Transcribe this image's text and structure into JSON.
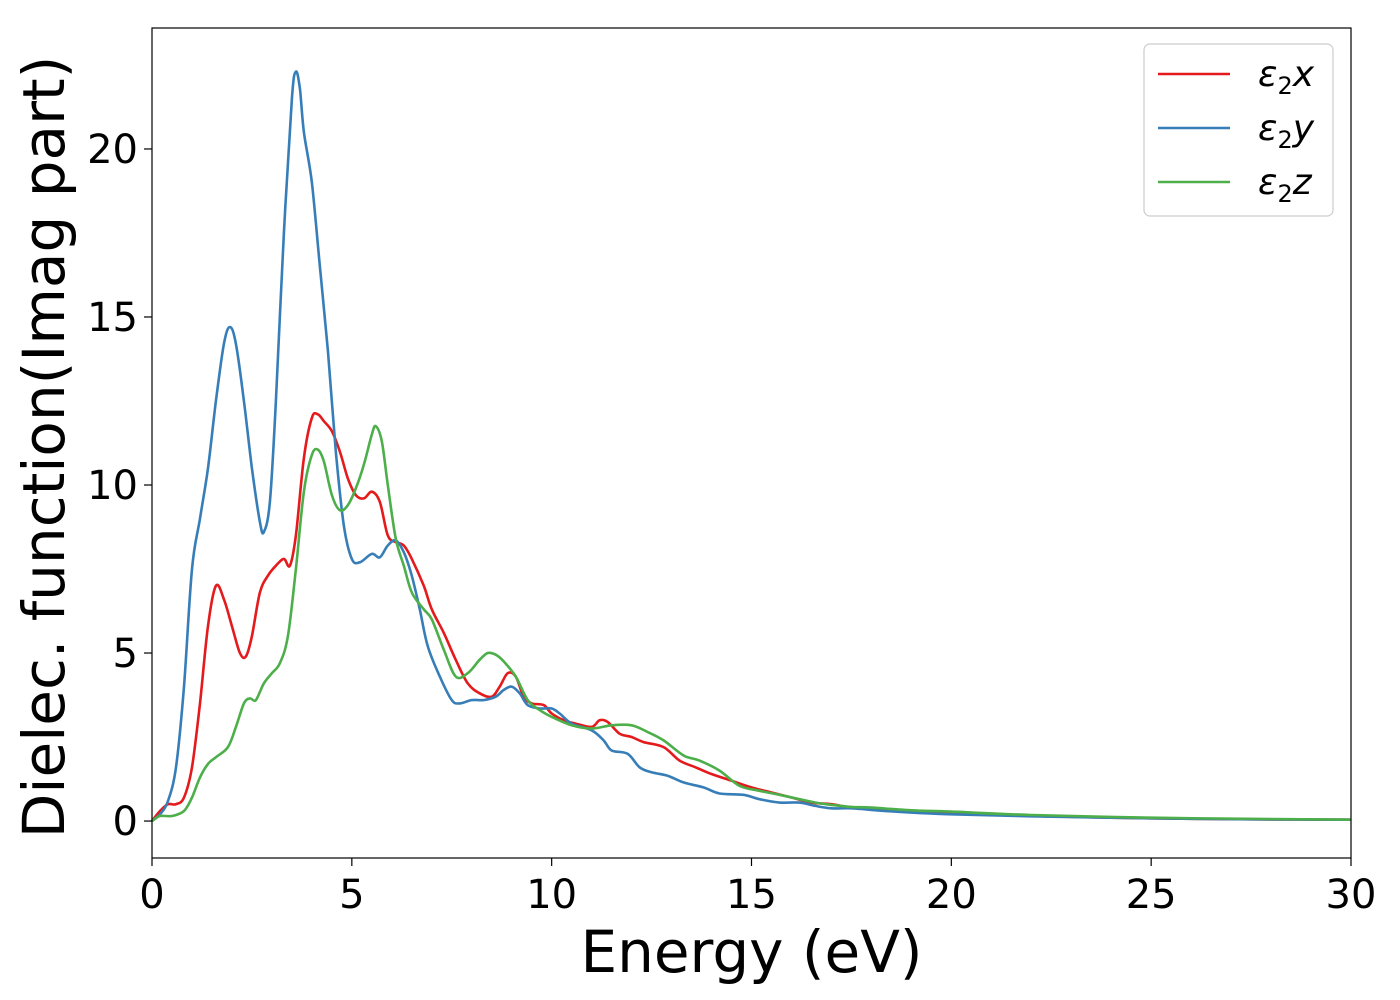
{
  "chart_data": {
    "type": "line",
    "title": "",
    "xlabel": "Energy (eV)",
    "ylabel": "Dielec. function(Imag part)",
    "xlim": [
      0,
      30
    ],
    "ylim": [
      -1.1,
      23.6
    ],
    "xticks": [
      "0",
      "5",
      "10",
      "15",
      "20",
      "25",
      "30"
    ],
    "yticks": [
      "0",
      "5",
      "10",
      "15",
      "20"
    ],
    "grid": false,
    "legend_position": "top-right",
    "series": [
      {
        "name": "ε₂x",
        "legend_base": "ε",
        "legend_sub": "2",
        "legend_suffix": "x",
        "color": "#e41a1c",
        "points": [
          [
            0,
            0
          ],
          [
            0.2,
            0.3
          ],
          [
            0.4,
            0.5
          ],
          [
            0.6,
            0.5
          ],
          [
            0.8,
            0.7
          ],
          [
            1.0,
            1.6
          ],
          [
            1.2,
            3.5
          ],
          [
            1.4,
            5.8
          ],
          [
            1.6,
            7.0
          ],
          [
            1.8,
            6.6
          ],
          [
            2.0,
            5.8
          ],
          [
            2.2,
            5.0
          ],
          [
            2.35,
            4.9
          ],
          [
            2.5,
            5.5
          ],
          [
            2.7,
            6.8
          ],
          [
            2.9,
            7.3
          ],
          [
            3.1,
            7.6
          ],
          [
            3.3,
            7.8
          ],
          [
            3.45,
            7.6
          ],
          [
            3.6,
            8.5
          ],
          [
            3.8,
            10.8
          ],
          [
            4.0,
            12.0
          ],
          [
            4.15,
            12.1
          ],
          [
            4.3,
            11.9
          ],
          [
            4.5,
            11.6
          ],
          [
            4.7,
            11.0
          ],
          [
            4.9,
            10.2
          ],
          [
            5.1,
            9.7
          ],
          [
            5.3,
            9.6
          ],
          [
            5.5,
            9.8
          ],
          [
            5.7,
            9.5
          ],
          [
            5.9,
            8.5
          ],
          [
            6.1,
            8.3
          ],
          [
            6.3,
            8.2
          ],
          [
            6.5,
            7.8
          ],
          [
            6.8,
            7.0
          ],
          [
            7.0,
            6.3
          ],
          [
            7.3,
            5.6
          ],
          [
            7.6,
            4.8
          ],
          [
            7.9,
            4.1
          ],
          [
            8.2,
            3.8
          ],
          [
            8.5,
            3.7
          ],
          [
            8.7,
            4.0
          ],
          [
            8.9,
            4.4
          ],
          [
            9.1,
            4.3
          ],
          [
            9.3,
            3.7
          ],
          [
            9.5,
            3.5
          ],
          [
            9.8,
            3.45
          ],
          [
            10.0,
            3.2
          ],
          [
            10.3,
            3.0
          ],
          [
            10.6,
            2.9
          ],
          [
            11.0,
            2.8
          ],
          [
            11.2,
            3.0
          ],
          [
            11.4,
            2.95
          ],
          [
            11.7,
            2.6
          ],
          [
            12.0,
            2.5
          ],
          [
            12.3,
            2.35
          ],
          [
            12.8,
            2.2
          ],
          [
            13.2,
            1.8
          ],
          [
            13.6,
            1.6
          ],
          [
            14.0,
            1.4
          ],
          [
            14.5,
            1.2
          ],
          [
            15.0,
            1.0
          ],
          [
            15.5,
            0.85
          ],
          [
            16.0,
            0.7
          ],
          [
            16.5,
            0.55
          ],
          [
            17.0,
            0.5
          ],
          [
            17.5,
            0.4
          ],
          [
            18.0,
            0.35
          ],
          [
            19.0,
            0.28
          ],
          [
            20.0,
            0.22
          ],
          [
            22.0,
            0.15
          ],
          [
            25.0,
            0.08
          ],
          [
            28.0,
            0.05
          ],
          [
            30.0,
            0.04
          ]
        ]
      },
      {
        "name": "ε₂y",
        "legend_base": "ε",
        "legend_sub": "2",
        "legend_suffix": "y",
        "color": "#377eb8",
        "points": [
          [
            0,
            0
          ],
          [
            0.2,
            0.2
          ],
          [
            0.4,
            0.6
          ],
          [
            0.6,
            1.6
          ],
          [
            0.8,
            4.0
          ],
          [
            1.0,
            7.5
          ],
          [
            1.2,
            9.0
          ],
          [
            1.4,
            10.5
          ],
          [
            1.6,
            12.5
          ],
          [
            1.8,
            14.2
          ],
          [
            1.95,
            14.7
          ],
          [
            2.1,
            14.2
          ],
          [
            2.3,
            12.5
          ],
          [
            2.5,
            10.5
          ],
          [
            2.7,
            8.9
          ],
          [
            2.8,
            8.6
          ],
          [
            2.95,
            9.5
          ],
          [
            3.1,
            12.5
          ],
          [
            3.3,
            17.5
          ],
          [
            3.5,
            21.5
          ],
          [
            3.6,
            22.3
          ],
          [
            3.7,
            21.8
          ],
          [
            3.8,
            20.5
          ],
          [
            4.0,
            19.0
          ],
          [
            4.2,
            16.5
          ],
          [
            4.4,
            14.0
          ],
          [
            4.6,
            11.0
          ],
          [
            4.8,
            8.8
          ],
          [
            5.0,
            7.8
          ],
          [
            5.2,
            7.7
          ],
          [
            5.5,
            7.95
          ],
          [
            5.7,
            7.85
          ],
          [
            5.9,
            8.2
          ],
          [
            6.1,
            8.35
          ],
          [
            6.3,
            8.0
          ],
          [
            6.5,
            7.3
          ],
          [
            6.7,
            6.3
          ],
          [
            6.9,
            5.2
          ],
          [
            7.2,
            4.3
          ],
          [
            7.5,
            3.6
          ],
          [
            7.7,
            3.5
          ],
          [
            8.0,
            3.6
          ],
          [
            8.3,
            3.6
          ],
          [
            8.6,
            3.7
          ],
          [
            8.8,
            3.9
          ],
          [
            9.0,
            4.0
          ],
          [
            9.2,
            3.8
          ],
          [
            9.4,
            3.45
          ],
          [
            9.7,
            3.35
          ],
          [
            10.0,
            3.35
          ],
          [
            10.2,
            3.2
          ],
          [
            10.5,
            2.9
          ],
          [
            11.0,
            2.7
          ],
          [
            11.3,
            2.4
          ],
          [
            11.5,
            2.1
          ],
          [
            11.9,
            2.0
          ],
          [
            12.2,
            1.6
          ],
          [
            12.5,
            1.45
          ],
          [
            12.9,
            1.35
          ],
          [
            13.3,
            1.15
          ],
          [
            13.8,
            1.0
          ],
          [
            14.2,
            0.82
          ],
          [
            14.8,
            0.78
          ],
          [
            15.2,
            0.65
          ],
          [
            15.7,
            0.55
          ],
          [
            16.2,
            0.55
          ],
          [
            16.6,
            0.45
          ],
          [
            17.0,
            0.38
          ],
          [
            17.5,
            0.38
          ],
          [
            18.0,
            0.33
          ],
          [
            19.0,
            0.25
          ],
          [
            20.0,
            0.2
          ],
          [
            22.0,
            0.14
          ],
          [
            25.0,
            0.08
          ],
          [
            28.0,
            0.05
          ],
          [
            30.0,
            0.04
          ]
        ]
      },
      {
        "name": "ε₂z",
        "legend_base": "ε",
        "legend_sub": "2",
        "legend_suffix": "z",
        "color": "#4daf4a",
        "points": [
          [
            0,
            0
          ],
          [
            0.2,
            0.15
          ],
          [
            0.5,
            0.15
          ],
          [
            0.8,
            0.3
          ],
          [
            1.0,
            0.7
          ],
          [
            1.2,
            1.3
          ],
          [
            1.4,
            1.7
          ],
          [
            1.6,
            1.9
          ],
          [
            1.9,
            2.2
          ],
          [
            2.1,
            2.8
          ],
          [
            2.3,
            3.5
          ],
          [
            2.45,
            3.65
          ],
          [
            2.6,
            3.6
          ],
          [
            2.8,
            4.1
          ],
          [
            3.0,
            4.4
          ],
          [
            3.2,
            4.7
          ],
          [
            3.4,
            5.5
          ],
          [
            3.6,
            7.5
          ],
          [
            3.8,
            9.8
          ],
          [
            4.0,
            10.9
          ],
          [
            4.15,
            11.05
          ],
          [
            4.3,
            10.7
          ],
          [
            4.5,
            9.7
          ],
          [
            4.7,
            9.25
          ],
          [
            4.9,
            9.4
          ],
          [
            5.1,
            9.9
          ],
          [
            5.3,
            10.6
          ],
          [
            5.5,
            11.5
          ],
          [
            5.6,
            11.75
          ],
          [
            5.75,
            11.3
          ],
          [
            5.9,
            10.0
          ],
          [
            6.1,
            8.4
          ],
          [
            6.3,
            7.6
          ],
          [
            6.5,
            6.8
          ],
          [
            6.8,
            6.3
          ],
          [
            7.0,
            6.0
          ],
          [
            7.3,
            5.1
          ],
          [
            7.6,
            4.3
          ],
          [
            7.9,
            4.4
          ],
          [
            8.2,
            4.8
          ],
          [
            8.4,
            5.0
          ],
          [
            8.6,
            4.95
          ],
          [
            8.8,
            4.75
          ],
          [
            9.1,
            4.3
          ],
          [
            9.4,
            3.6
          ],
          [
            9.7,
            3.3
          ],
          [
            10.0,
            3.1
          ],
          [
            10.5,
            2.85
          ],
          [
            11.0,
            2.75
          ],
          [
            11.5,
            2.85
          ],
          [
            12.0,
            2.85
          ],
          [
            12.4,
            2.65
          ],
          [
            12.8,
            2.4
          ],
          [
            13.3,
            1.95
          ],
          [
            13.7,
            1.8
          ],
          [
            14.2,
            1.5
          ],
          [
            14.7,
            1.05
          ],
          [
            15.2,
            0.9
          ],
          [
            15.7,
            0.78
          ],
          [
            16.2,
            0.65
          ],
          [
            16.6,
            0.55
          ],
          [
            17.0,
            0.48
          ],
          [
            17.5,
            0.42
          ],
          [
            18.0,
            0.4
          ],
          [
            19.0,
            0.32
          ],
          [
            20.0,
            0.28
          ],
          [
            22.0,
            0.18
          ],
          [
            25.0,
            0.1
          ],
          [
            28.0,
            0.06
          ],
          [
            30.0,
            0.04
          ]
        ]
      }
    ]
  }
}
